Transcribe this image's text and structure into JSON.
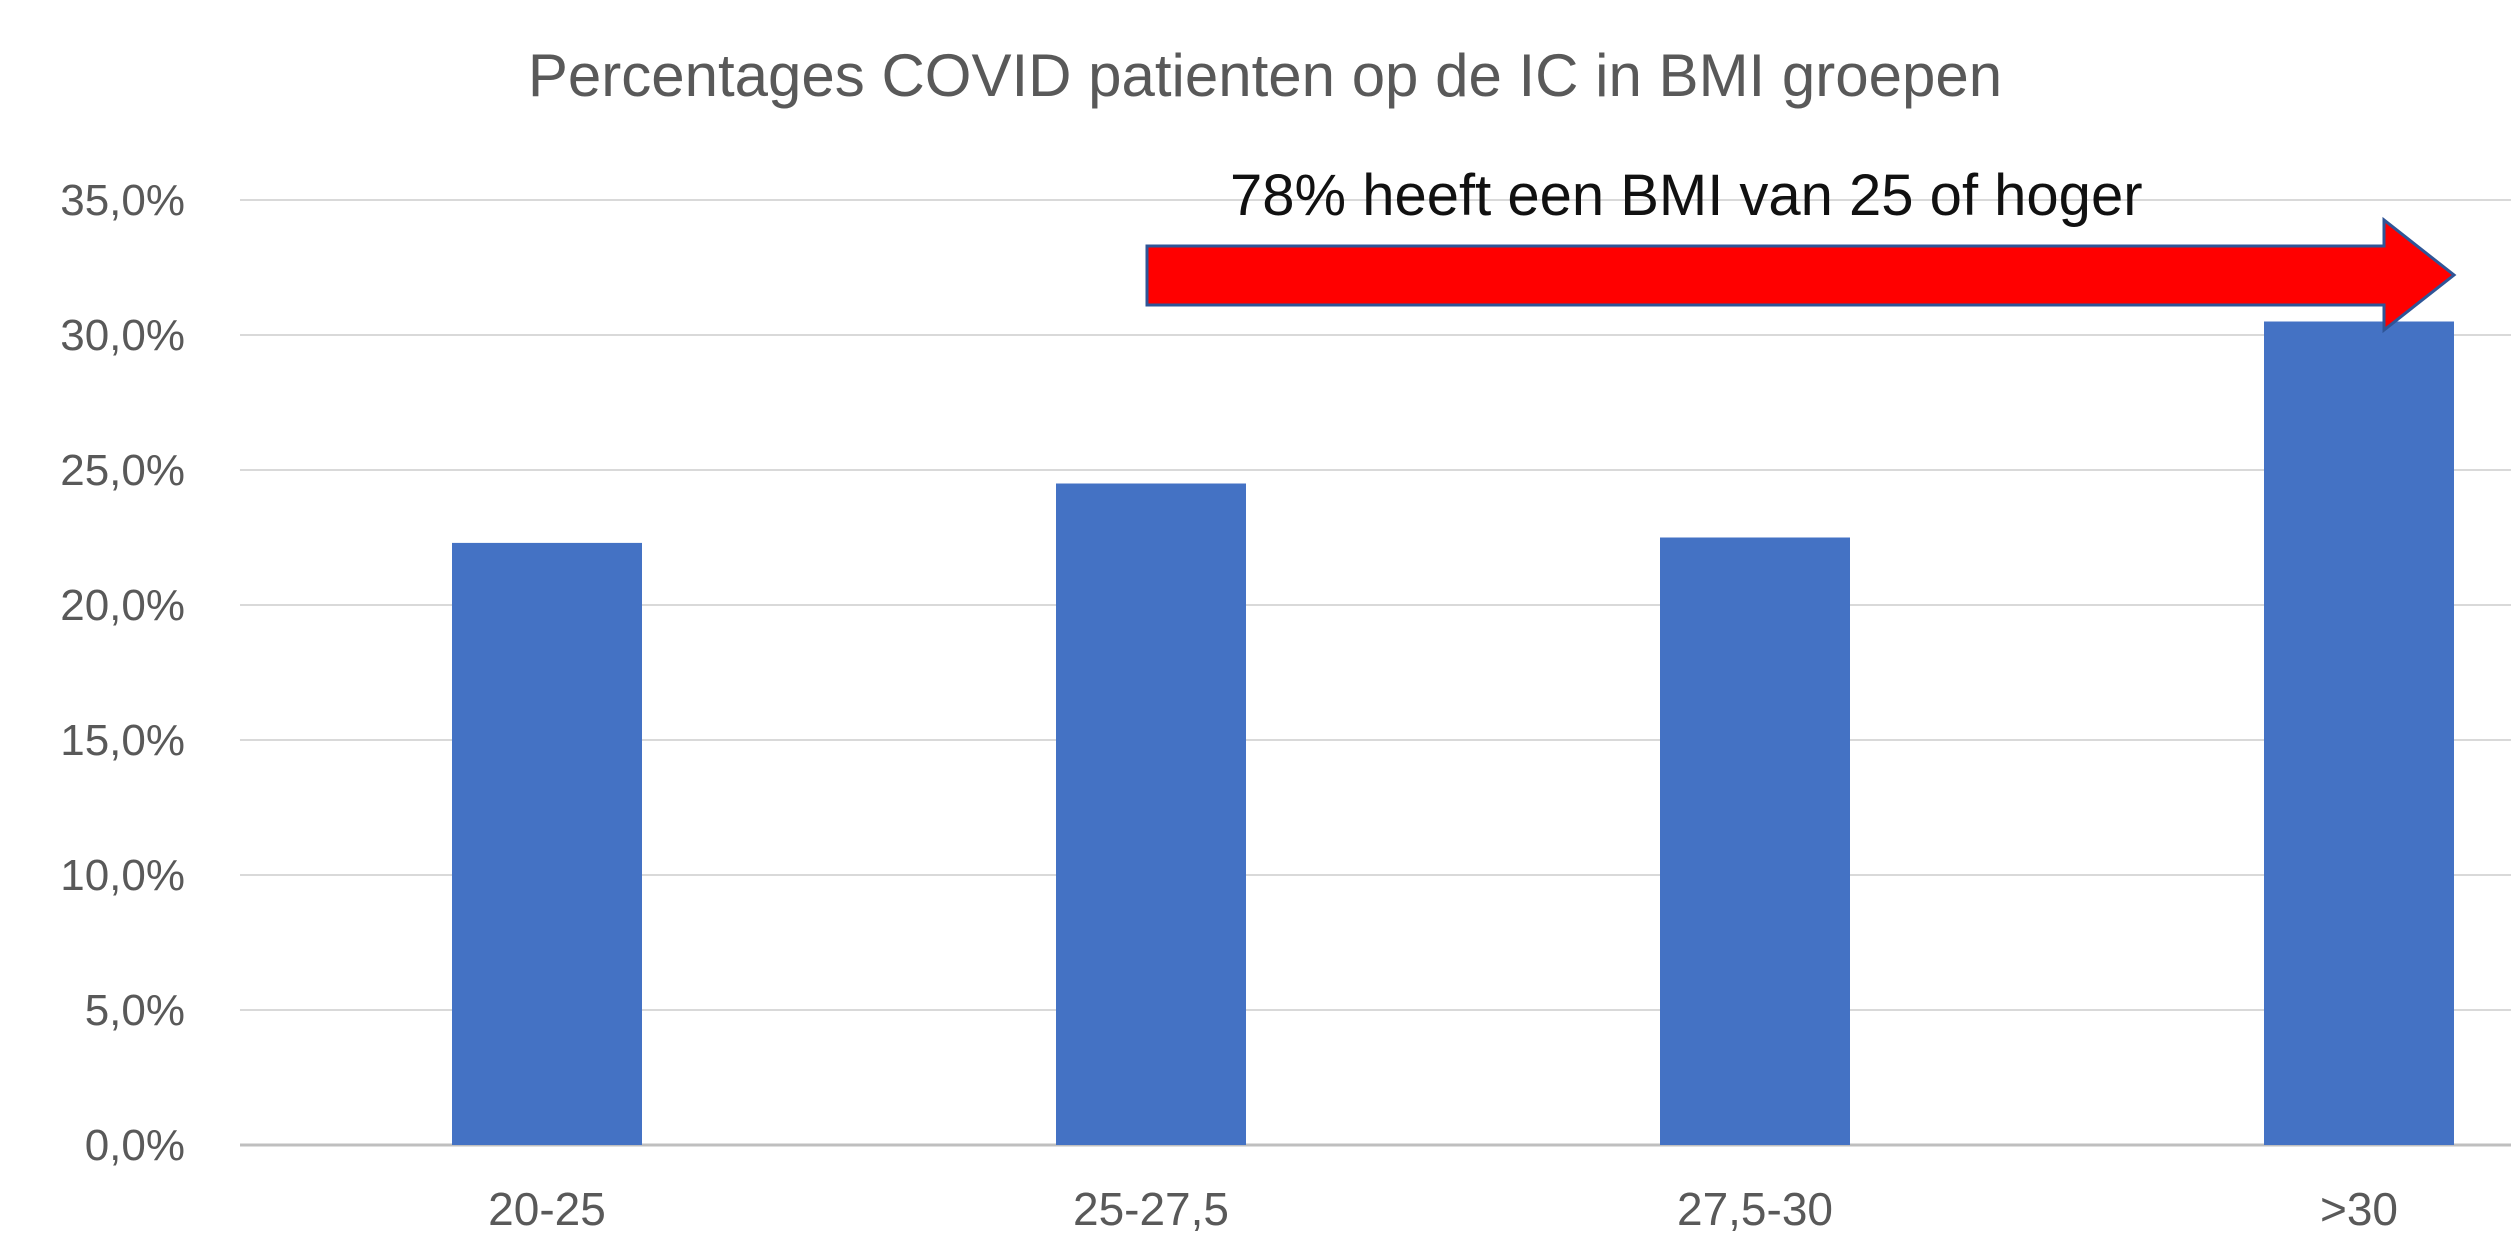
{
  "chart_data": {
    "type": "bar",
    "title": "Percentages COVID patienten op  de IC in BMI groepen",
    "xlabel": "",
    "ylabel": "",
    "categories": [
      "20-25",
      "25-27,5",
      "27,5-30",
      ">30"
    ],
    "values": [
      22.3,
      24.5,
      22.5,
      30.5
    ],
    "ylim": [
      0,
      35
    ],
    "yticks": [
      "0,0%",
      "5,0%",
      "10,0%",
      "15,0%",
      "20,0%",
      "25,0%",
      "30,0%",
      "35,0%"
    ],
    "grid": true,
    "legend": "none",
    "bar_color": "#4472C4",
    "annotation": {
      "text": "78% heeft een BMI van 25  of hoger",
      "arrow_color": "#FF0000",
      "arrow_from_category": "25-27,5",
      "arrow_to_category": ">30"
    }
  }
}
